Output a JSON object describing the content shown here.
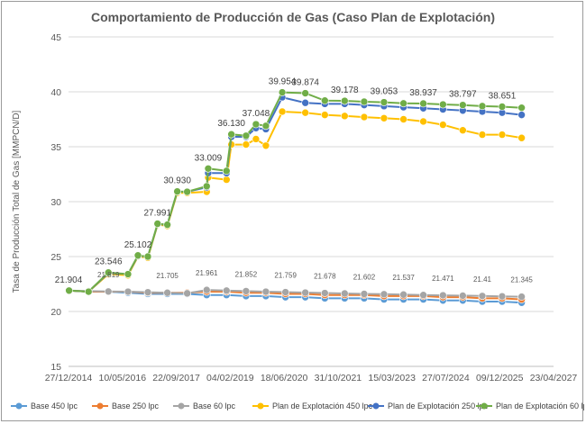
{
  "chart_data": {
    "type": "line",
    "title": "Comportamiento de Producción de Gas (Caso Plan de Explotación)",
    "ylabel": "Tasa de Producción Total de Gas [MMPCN/D]",
    "ylim": [
      15,
      45
    ],
    "yticks": [
      15,
      20,
      25,
      30,
      35,
      40,
      45
    ],
    "xlim": [
      "2014-12-27",
      "2027-04-23"
    ],
    "xticks": [
      "2014-12-27",
      "2016-05-10",
      "2017-09-22",
      "2019-02-04",
      "2020-06-18",
      "2021-10-31",
      "2023-03-15",
      "2024-07-27",
      "2025-12-09",
      "2027-04-23"
    ],
    "xtick_labels": [
      "27/12/2014",
      "10/05/2016",
      "22/09/2017",
      "04/02/2019",
      "18/06/2020",
      "31/10/2021",
      "15/03/2023",
      "27/07/2024",
      "09/12/2025",
      "23/04/2027"
    ],
    "grid": "horizontal",
    "legend_position": "bottom",
    "series": [
      {
        "name": "Base 450 lpc",
        "color": "#5B9BD5",
        "points": [
          [
            "2015-01-01",
            21.9
          ],
          [
            "2015-07-01",
            21.8
          ],
          [
            "2016-01-01",
            21.8
          ],
          [
            "2016-07-01",
            21.7
          ],
          [
            "2017-01-01",
            21.6
          ],
          [
            "2017-07-01",
            21.6
          ],
          [
            "2018-01-01",
            21.6
          ],
          [
            "2018-07-01",
            21.5
          ],
          [
            "2019-01-01",
            21.5
          ],
          [
            "2019-07-01",
            21.4
          ],
          [
            "2020-01-01",
            21.4
          ],
          [
            "2020-07-01",
            21.3
          ],
          [
            "2021-01-01",
            21.3
          ],
          [
            "2021-07-01",
            21.2
          ],
          [
            "2022-01-01",
            21.2
          ],
          [
            "2022-07-01",
            21.2
          ],
          [
            "2023-01-01",
            21.1
          ],
          [
            "2023-07-01",
            21.1
          ],
          [
            "2024-01-01",
            21.1
          ],
          [
            "2024-07-01",
            21.0
          ],
          [
            "2025-01-01",
            21.0
          ],
          [
            "2025-07-01",
            20.9
          ],
          [
            "2026-01-01",
            20.9
          ],
          [
            "2026-07-01",
            20.8
          ]
        ]
      },
      {
        "name": "Base 250 lpc",
        "color": "#ED7D31",
        "points": [
          [
            "2015-01-01",
            21.9
          ],
          [
            "2015-07-01",
            21.8
          ],
          [
            "2016-01-01",
            21.8
          ],
          [
            "2016-07-01",
            21.8
          ],
          [
            "2017-01-01",
            21.7
          ],
          [
            "2017-07-01",
            21.7
          ],
          [
            "2018-01-01",
            21.7
          ],
          [
            "2018-07-01",
            21.8
          ],
          [
            "2019-01-01",
            21.8
          ],
          [
            "2019-07-01",
            21.7
          ],
          [
            "2020-01-01",
            21.7
          ],
          [
            "2020-07-01",
            21.6
          ],
          [
            "2021-01-01",
            21.6
          ],
          [
            "2021-07-01",
            21.5
          ],
          [
            "2022-01-01",
            21.5
          ],
          [
            "2022-07-01",
            21.5
          ],
          [
            "2023-01-01",
            21.4
          ],
          [
            "2023-07-01",
            21.4
          ],
          [
            "2024-01-01",
            21.4
          ],
          [
            "2024-07-01",
            21.3
          ],
          [
            "2025-01-01",
            21.3
          ],
          [
            "2025-07-01",
            21.2
          ],
          [
            "2026-01-01",
            21.2
          ],
          [
            "2026-07-01",
            21.1
          ]
        ]
      },
      {
        "name": "Base 60 lpc",
        "color": "#A5A5A5",
        "points": [
          [
            "2015-01-01",
            21.904
          ],
          [
            "2015-07-01",
            21.85
          ],
          [
            "2016-01-01",
            21.819
          ],
          [
            "2016-07-01",
            21.8
          ],
          [
            "2017-01-01",
            21.75
          ],
          [
            "2017-07-01",
            21.705
          ],
          [
            "2018-01-01",
            21.65
          ],
          [
            "2018-07-01",
            21.961
          ],
          [
            "2019-01-01",
            21.9
          ],
          [
            "2019-07-01",
            21.852
          ],
          [
            "2020-01-01",
            21.8
          ],
          [
            "2020-07-01",
            21.759
          ],
          [
            "2021-01-01",
            21.72
          ],
          [
            "2021-07-01",
            21.678
          ],
          [
            "2022-01-01",
            21.64
          ],
          [
            "2022-07-01",
            21.602
          ],
          [
            "2023-01-01",
            21.57
          ],
          [
            "2023-07-01",
            21.537
          ],
          [
            "2024-01-01",
            21.5
          ],
          [
            "2024-07-01",
            21.471
          ],
          [
            "2025-01-01",
            21.44
          ],
          [
            "2025-07-01",
            21.41
          ],
          [
            "2026-01-01",
            21.38
          ],
          [
            "2026-07-01",
            21.345
          ]
        ]
      },
      {
        "name": "Plan de Explotación 450 lpc",
        "color": "#FFC000",
        "points": [
          [
            "2015-01-01",
            21.9
          ],
          [
            "2015-07-01",
            21.8
          ],
          [
            "2016-01-01",
            23.4
          ],
          [
            "2016-07-01",
            23.3
          ],
          [
            "2016-10-01",
            25.0
          ],
          [
            "2017-01-01",
            24.9
          ],
          [
            "2017-04-01",
            27.9
          ],
          [
            "2017-07-01",
            27.8
          ],
          [
            "2017-10-01",
            30.8
          ],
          [
            "2018-01-01",
            30.8
          ],
          [
            "2018-07-01",
            30.9
          ],
          [
            "2018-07-15",
            32.2
          ],
          [
            "2019-01-01",
            32.0
          ],
          [
            "2019-02-15",
            35.2
          ],
          [
            "2019-07-01",
            35.2
          ],
          [
            "2019-10-01",
            35.7
          ],
          [
            "2020-01-01",
            35.1
          ],
          [
            "2020-06-01",
            38.2
          ],
          [
            "2021-01-01",
            38.1
          ],
          [
            "2021-07-01",
            37.9
          ],
          [
            "2022-01-01",
            37.8
          ],
          [
            "2022-07-01",
            37.7
          ],
          [
            "2023-01-01",
            37.6
          ],
          [
            "2023-07-01",
            37.5
          ],
          [
            "2024-01-01",
            37.3
          ],
          [
            "2024-07-01",
            37.0
          ],
          [
            "2025-01-01",
            36.5
          ],
          [
            "2025-07-01",
            36.1
          ],
          [
            "2026-01-01",
            36.1
          ],
          [
            "2026-07-01",
            35.8
          ]
        ]
      },
      {
        "name": "Plan de Explotación 250 lpc",
        "color": "#4472C4",
        "points": [
          [
            "2015-01-01",
            21.9
          ],
          [
            "2015-07-01",
            21.8
          ],
          [
            "2016-01-01",
            23.5
          ],
          [
            "2016-07-01",
            23.4
          ],
          [
            "2016-10-01",
            25.05
          ],
          [
            "2017-01-01",
            25.0
          ],
          [
            "2017-04-01",
            27.95
          ],
          [
            "2017-07-01",
            27.9
          ],
          [
            "2017-10-01",
            30.9
          ],
          [
            "2018-01-01",
            30.9
          ],
          [
            "2018-07-01",
            31.3
          ],
          [
            "2018-07-15",
            32.6
          ],
          [
            "2019-01-01",
            32.6
          ],
          [
            "2019-02-15",
            35.9
          ],
          [
            "2019-07-01",
            35.9
          ],
          [
            "2019-10-01",
            36.7
          ],
          [
            "2020-01-01",
            36.6
          ],
          [
            "2020-06-01",
            39.5
          ],
          [
            "2021-01-01",
            39.0
          ],
          [
            "2021-07-01",
            38.9
          ],
          [
            "2022-01-01",
            38.9
          ],
          [
            "2022-07-01",
            38.8
          ],
          [
            "2023-01-01",
            38.7
          ],
          [
            "2023-07-01",
            38.6
          ],
          [
            "2024-01-01",
            38.5
          ],
          [
            "2024-07-01",
            38.4
          ],
          [
            "2025-01-01",
            38.3
          ],
          [
            "2025-07-01",
            38.2
          ],
          [
            "2026-01-01",
            38.1
          ],
          [
            "2026-07-01",
            37.9
          ]
        ]
      },
      {
        "name": "Plan de Explotación 60 lpc",
        "color": "#70AD47",
        "points": [
          [
            "2015-01-01",
            21.904
          ],
          [
            "2015-07-01",
            21.8
          ],
          [
            "2016-01-01",
            23.546
          ],
          [
            "2016-07-01",
            23.4
          ],
          [
            "2016-10-01",
            25.102
          ],
          [
            "2017-01-01",
            25.0
          ],
          [
            "2017-04-01",
            27.991
          ],
          [
            "2017-07-01",
            27.9
          ],
          [
            "2017-10-01",
            30.93
          ],
          [
            "2018-01-01",
            30.9
          ],
          [
            "2018-07-01",
            31.4
          ],
          [
            "2018-07-15",
            33.009
          ],
          [
            "2019-01-01",
            32.8
          ],
          [
            "2019-02-15",
            36.13
          ],
          [
            "2019-07-01",
            36.0
          ],
          [
            "2019-10-01",
            37.048
          ],
          [
            "2020-01-01",
            36.9
          ],
          [
            "2020-06-01",
            39.954
          ],
          [
            "2021-01-01",
            39.874
          ],
          [
            "2021-07-01",
            39.2
          ],
          [
            "2022-01-01",
            39.178
          ],
          [
            "2022-07-01",
            39.1
          ],
          [
            "2023-01-01",
            39.053
          ],
          [
            "2023-07-01",
            38.95
          ],
          [
            "2024-01-01",
            38.937
          ],
          [
            "2024-07-01",
            38.85
          ],
          [
            "2025-01-01",
            38.797
          ],
          [
            "2025-07-01",
            38.7
          ],
          [
            "2026-01-01",
            38.651
          ],
          [
            "2026-07-01",
            38.55
          ]
        ]
      }
    ],
    "data_labels": {
      "plan": [
        [
          "2014-12-27",
          21.904,
          "21.904"
        ],
        [
          "2016-01-01",
          23.546,
          "23.546"
        ],
        [
          "2016-10-01",
          25.102,
          "25.102"
        ],
        [
          "2017-04-01",
          27.991,
          "27.991"
        ],
        [
          "2017-10-01",
          30.93,
          "30.930"
        ],
        [
          "2018-07-15",
          33.009,
          "33.009"
        ],
        [
          "2019-02-15",
          36.13,
          "36.130"
        ],
        [
          "2019-10-01",
          37.048,
          "37.048"
        ],
        [
          "2020-06-01",
          39.954,
          "39.954"
        ],
        [
          "2021-01-01",
          39.874,
          "39.874"
        ],
        [
          "2022-01-01",
          39.178,
          "39.178"
        ],
        [
          "2023-01-01",
          39.053,
          "39.053"
        ],
        [
          "2024-01-01",
          38.937,
          "38.937"
        ],
        [
          "2025-01-01",
          38.797,
          "38.797"
        ],
        [
          "2026-01-01",
          38.651,
          "38.651"
        ]
      ],
      "base": [
        [
          "2016-01-01",
          21.819,
          "21.819"
        ],
        [
          "2017-07-01",
          21.705,
          "21.705"
        ],
        [
          "2018-07-01",
          21.961,
          "21.961"
        ],
        [
          "2019-07-01",
          21.852,
          "21.852"
        ],
        [
          "2020-07-01",
          21.759,
          "21.759"
        ],
        [
          "2021-07-01",
          21.678,
          "21.678"
        ],
        [
          "2022-07-01",
          21.602,
          "21.602"
        ],
        [
          "2023-07-01",
          21.537,
          "21.537"
        ],
        [
          "2024-07-01",
          21.471,
          "21.471"
        ],
        [
          "2025-07-01",
          21.41,
          "21.41"
        ],
        [
          "2026-07-01",
          21.345,
          "21.345"
        ]
      ]
    }
  }
}
